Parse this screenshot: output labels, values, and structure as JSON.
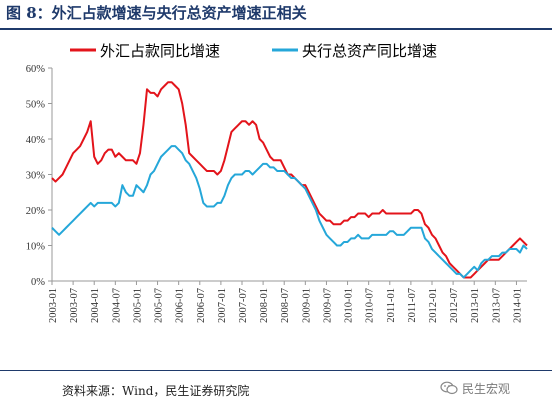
{
  "header": {
    "title": "图 8：外汇占款增速与央行总资产增速正相关"
  },
  "footer": {
    "source": "资料来源：Wind，民生证券研究院",
    "watermark": "民生宏观"
  },
  "colors": {
    "header_blue": "#1f3a6b",
    "series_red": "#e3141b",
    "series_cyan": "#25a7d9",
    "axis": "#999999"
  },
  "chart_data": {
    "type": "line",
    "title": "",
    "xlabel": "",
    "ylabel": "",
    "ylim": [
      0,
      0.6
    ],
    "yticks": [
      0,
      0.1,
      0.2,
      0.3,
      0.4,
      0.5,
      0.6
    ],
    "ytick_labels": [
      "0%",
      "10%",
      "20%",
      "30%",
      "40%",
      "50%",
      "60%"
    ],
    "xlim": [
      "2003-01",
      "2014-04"
    ],
    "xtick_labels": [
      "2003-01",
      "2003-07",
      "2004-01",
      "2004-07",
      "2005-01",
      "2005-07",
      "2006-01",
      "2006-07",
      "2007-01",
      "2007-07",
      "2008-01",
      "2008-07",
      "2009-01",
      "2009-07",
      "2010-01",
      "2010-07",
      "2011-01",
      "2011-07",
      "2012-01",
      "2012-07",
      "2013-01",
      "2013-07",
      "2014-01"
    ],
    "grid": false,
    "legend_position": "top",
    "series": [
      {
        "name": "外汇占款同比增速",
        "color": "#e3141b",
        "points": [
          [
            "2003-01",
            0.29
          ],
          [
            "2003-02",
            0.28
          ],
          [
            "2003-03",
            0.29
          ],
          [
            "2003-04",
            0.3
          ],
          [
            "2003-05",
            0.32
          ],
          [
            "2003-06",
            0.34
          ],
          [
            "2003-07",
            0.36
          ],
          [
            "2003-08",
            0.37
          ],
          [
            "2003-09",
            0.38
          ],
          [
            "2003-10",
            0.4
          ],
          [
            "2003-11",
            0.42
          ],
          [
            "2003-12",
            0.45
          ],
          [
            "2004-01",
            0.35
          ],
          [
            "2004-02",
            0.33
          ],
          [
            "2004-03",
            0.34
          ],
          [
            "2004-04",
            0.36
          ],
          [
            "2004-05",
            0.37
          ],
          [
            "2004-06",
            0.37
          ],
          [
            "2004-07",
            0.35
          ],
          [
            "2004-08",
            0.36
          ],
          [
            "2004-09",
            0.35
          ],
          [
            "2004-10",
            0.34
          ],
          [
            "2004-11",
            0.34
          ],
          [
            "2004-12",
            0.34
          ],
          [
            "2005-01",
            0.33
          ],
          [
            "2005-02",
            0.36
          ],
          [
            "2005-03",
            0.44
          ],
          [
            "2005-04",
            0.54
          ],
          [
            "2005-05",
            0.53
          ],
          [
            "2005-06",
            0.53
          ],
          [
            "2005-07",
            0.52
          ],
          [
            "2005-08",
            0.54
          ],
          [
            "2005-09",
            0.55
          ],
          [
            "2005-10",
            0.56
          ],
          [
            "2005-11",
            0.56
          ],
          [
            "2005-12",
            0.55
          ],
          [
            "2006-01",
            0.54
          ],
          [
            "2006-02",
            0.5
          ],
          [
            "2006-03",
            0.44
          ],
          [
            "2006-04",
            0.36
          ],
          [
            "2006-05",
            0.35
          ],
          [
            "2006-06",
            0.34
          ],
          [
            "2006-07",
            0.33
          ],
          [
            "2006-08",
            0.32
          ],
          [
            "2006-09",
            0.31
          ],
          [
            "2006-10",
            0.31
          ],
          [
            "2006-11",
            0.31
          ],
          [
            "2006-12",
            0.3
          ],
          [
            "2007-01",
            0.31
          ],
          [
            "2007-02",
            0.34
          ],
          [
            "2007-03",
            0.38
          ],
          [
            "2007-04",
            0.42
          ],
          [
            "2007-05",
            0.43
          ],
          [
            "2007-06",
            0.44
          ],
          [
            "2007-07",
            0.45
          ],
          [
            "2007-08",
            0.45
          ],
          [
            "2007-09",
            0.44
          ],
          [
            "2007-10",
            0.45
          ],
          [
            "2007-11",
            0.44
          ],
          [
            "2007-12",
            0.4
          ],
          [
            "2008-01",
            0.39
          ],
          [
            "2008-02",
            0.37
          ],
          [
            "2008-03",
            0.35
          ],
          [
            "2008-04",
            0.34
          ],
          [
            "2008-05",
            0.34
          ],
          [
            "2008-06",
            0.34
          ],
          [
            "2008-07",
            0.32
          ],
          [
            "2008-08",
            0.3
          ],
          [
            "2008-09",
            0.3
          ],
          [
            "2008-10",
            0.29
          ],
          [
            "2008-11",
            0.28
          ],
          [
            "2008-12",
            0.27
          ],
          [
            "2009-01",
            0.27
          ],
          [
            "2009-02",
            0.25
          ],
          [
            "2009-03",
            0.23
          ],
          [
            "2009-04",
            0.21
          ],
          [
            "2009-05",
            0.19
          ],
          [
            "2009-06",
            0.18
          ],
          [
            "2009-07",
            0.17
          ],
          [
            "2009-08",
            0.17
          ],
          [
            "2009-09",
            0.16
          ],
          [
            "2009-10",
            0.16
          ],
          [
            "2009-11",
            0.16
          ],
          [
            "2009-12",
            0.17
          ],
          [
            "2010-01",
            0.17
          ],
          [
            "2010-02",
            0.18
          ],
          [
            "2010-03",
            0.18
          ],
          [
            "2010-04",
            0.19
          ],
          [
            "2010-05",
            0.19
          ],
          [
            "2010-06",
            0.19
          ],
          [
            "2010-07",
            0.18
          ],
          [
            "2010-08",
            0.19
          ],
          [
            "2010-09",
            0.19
          ],
          [
            "2010-10",
            0.19
          ],
          [
            "2010-11",
            0.2
          ],
          [
            "2010-12",
            0.19
          ],
          [
            "2011-01",
            0.19
          ],
          [
            "2011-02",
            0.19
          ],
          [
            "2011-03",
            0.19
          ],
          [
            "2011-04",
            0.19
          ],
          [
            "2011-05",
            0.19
          ],
          [
            "2011-06",
            0.19
          ],
          [
            "2011-07",
            0.19
          ],
          [
            "2011-08",
            0.2
          ],
          [
            "2011-09",
            0.2
          ],
          [
            "2011-10",
            0.19
          ],
          [
            "2011-11",
            0.16
          ],
          [
            "2011-12",
            0.15
          ],
          [
            "2012-01",
            0.13
          ],
          [
            "2012-02",
            0.12
          ],
          [
            "2012-03",
            0.1
          ],
          [
            "2012-04",
            0.08
          ],
          [
            "2012-05",
            0.07
          ],
          [
            "2012-06",
            0.05
          ],
          [
            "2012-07",
            0.04
          ],
          [
            "2012-08",
            0.03
          ],
          [
            "2012-09",
            0.02
          ],
          [
            "2012-10",
            0.01
          ],
          [
            "2012-11",
            0.01
          ],
          [
            "2012-12",
            0.01
          ],
          [
            "2013-01",
            0.02
          ],
          [
            "2013-02",
            0.03
          ],
          [
            "2013-03",
            0.04
          ],
          [
            "2013-04",
            0.05
          ],
          [
            "2013-05",
            0.06
          ],
          [
            "2013-06",
            0.06
          ],
          [
            "2013-07",
            0.06
          ],
          [
            "2013-08",
            0.06
          ],
          [
            "2013-09",
            0.07
          ],
          [
            "2013-10",
            0.08
          ],
          [
            "2013-11",
            0.09
          ],
          [
            "2013-12",
            0.1
          ],
          [
            "2014-01",
            0.11
          ],
          [
            "2014-02",
            0.12
          ],
          [
            "2014-03",
            0.11
          ],
          [
            "2014-04",
            0.1
          ]
        ]
      },
      {
        "name": "央行总资产同比增速",
        "color": "#25a7d9",
        "points": [
          [
            "2003-01",
            0.15
          ],
          [
            "2003-02",
            0.14
          ],
          [
            "2003-03",
            0.13
          ],
          [
            "2003-04",
            0.14
          ],
          [
            "2003-05",
            0.15
          ],
          [
            "2003-06",
            0.16
          ],
          [
            "2003-07",
            0.17
          ],
          [
            "2003-08",
            0.18
          ],
          [
            "2003-09",
            0.19
          ],
          [
            "2003-10",
            0.2
          ],
          [
            "2003-11",
            0.21
          ],
          [
            "2003-12",
            0.22
          ],
          [
            "2004-01",
            0.21
          ],
          [
            "2004-02",
            0.22
          ],
          [
            "2004-03",
            0.22
          ],
          [
            "2004-04",
            0.22
          ],
          [
            "2004-05",
            0.22
          ],
          [
            "2004-06",
            0.22
          ],
          [
            "2004-07",
            0.21
          ],
          [
            "2004-08",
            0.22
          ],
          [
            "2004-09",
            0.27
          ],
          [
            "2004-10",
            0.25
          ],
          [
            "2004-11",
            0.24
          ],
          [
            "2004-12",
            0.24
          ],
          [
            "2005-01",
            0.27
          ],
          [
            "2005-02",
            0.26
          ],
          [
            "2005-03",
            0.25
          ],
          [
            "2005-04",
            0.27
          ],
          [
            "2005-05",
            0.3
          ],
          [
            "2005-06",
            0.31
          ],
          [
            "2005-07",
            0.33
          ],
          [
            "2005-08",
            0.35
          ],
          [
            "2005-09",
            0.36
          ],
          [
            "2005-10",
            0.37
          ],
          [
            "2005-11",
            0.38
          ],
          [
            "2005-12",
            0.38
          ],
          [
            "2006-01",
            0.37
          ],
          [
            "2006-02",
            0.36
          ],
          [
            "2006-03",
            0.34
          ],
          [
            "2006-04",
            0.33
          ],
          [
            "2006-05",
            0.31
          ],
          [
            "2006-06",
            0.29
          ],
          [
            "2006-07",
            0.26
          ],
          [
            "2006-08",
            0.22
          ],
          [
            "2006-09",
            0.21
          ],
          [
            "2006-10",
            0.21
          ],
          [
            "2006-11",
            0.21
          ],
          [
            "2006-12",
            0.22
          ],
          [
            "2007-01",
            0.22
          ],
          [
            "2007-02",
            0.24
          ],
          [
            "2007-03",
            0.27
          ],
          [
            "2007-04",
            0.29
          ],
          [
            "2007-05",
            0.3
          ],
          [
            "2007-06",
            0.3
          ],
          [
            "2007-07",
            0.3
          ],
          [
            "2007-08",
            0.31
          ],
          [
            "2007-09",
            0.31
          ],
          [
            "2007-10",
            0.3
          ],
          [
            "2007-11",
            0.31
          ],
          [
            "2007-12",
            0.32
          ],
          [
            "2008-01",
            0.33
          ],
          [
            "2008-02",
            0.33
          ],
          [
            "2008-03",
            0.32
          ],
          [
            "2008-04",
            0.32
          ],
          [
            "2008-05",
            0.31
          ],
          [
            "2008-06",
            0.31
          ],
          [
            "2008-07",
            0.31
          ],
          [
            "2008-08",
            0.3
          ],
          [
            "2008-09",
            0.29
          ],
          [
            "2008-10",
            0.29
          ],
          [
            "2008-11",
            0.28
          ],
          [
            "2008-12",
            0.27
          ],
          [
            "2009-01",
            0.26
          ],
          [
            "2009-02",
            0.24
          ],
          [
            "2009-03",
            0.22
          ],
          [
            "2009-04",
            0.2
          ],
          [
            "2009-05",
            0.17
          ],
          [
            "2009-06",
            0.15
          ],
          [
            "2009-07",
            0.13
          ],
          [
            "2009-08",
            0.12
          ],
          [
            "2009-09",
            0.11
          ],
          [
            "2009-10",
            0.1
          ],
          [
            "2009-11",
            0.1
          ],
          [
            "2009-12",
            0.11
          ],
          [
            "2010-01",
            0.11
          ],
          [
            "2010-02",
            0.12
          ],
          [
            "2010-03",
            0.12
          ],
          [
            "2010-04",
            0.13
          ],
          [
            "2010-05",
            0.12
          ],
          [
            "2010-06",
            0.12
          ],
          [
            "2010-07",
            0.12
          ],
          [
            "2010-08",
            0.13
          ],
          [
            "2010-09",
            0.13
          ],
          [
            "2010-10",
            0.13
          ],
          [
            "2010-11",
            0.13
          ],
          [
            "2010-12",
            0.13
          ],
          [
            "2011-01",
            0.14
          ],
          [
            "2011-02",
            0.14
          ],
          [
            "2011-03",
            0.13
          ],
          [
            "2011-04",
            0.13
          ],
          [
            "2011-05",
            0.13
          ],
          [
            "2011-06",
            0.14
          ],
          [
            "2011-07",
            0.15
          ],
          [
            "2011-08",
            0.15
          ],
          [
            "2011-09",
            0.15
          ],
          [
            "2011-10",
            0.15
          ],
          [
            "2011-11",
            0.12
          ],
          [
            "2011-12",
            0.11
          ],
          [
            "2012-01",
            0.09
          ],
          [
            "2012-02",
            0.08
          ],
          [
            "2012-03",
            0.07
          ],
          [
            "2012-04",
            0.06
          ],
          [
            "2012-05",
            0.05
          ],
          [
            "2012-06",
            0.04
          ],
          [
            "2012-07",
            0.03
          ],
          [
            "2012-08",
            0.02
          ],
          [
            "2012-09",
            0.02
          ],
          [
            "2012-10",
            0.01
          ],
          [
            "2012-11",
            0.02
          ],
          [
            "2012-12",
            0.03
          ],
          [
            "2013-01",
            0.04
          ],
          [
            "2013-02",
            0.03
          ],
          [
            "2013-03",
            0.05
          ],
          [
            "2013-04",
            0.06
          ],
          [
            "2013-05",
            0.06
          ],
          [
            "2013-06",
            0.07
          ],
          [
            "2013-07",
            0.07
          ],
          [
            "2013-08",
            0.07
          ],
          [
            "2013-09",
            0.08
          ],
          [
            "2013-10",
            0.08
          ],
          [
            "2013-11",
            0.09
          ],
          [
            "2013-12",
            0.09
          ],
          [
            "2014-01",
            0.09
          ],
          [
            "2014-02",
            0.08
          ],
          [
            "2014-03",
            0.1
          ],
          [
            "2014-04",
            0.09
          ]
        ]
      }
    ]
  }
}
